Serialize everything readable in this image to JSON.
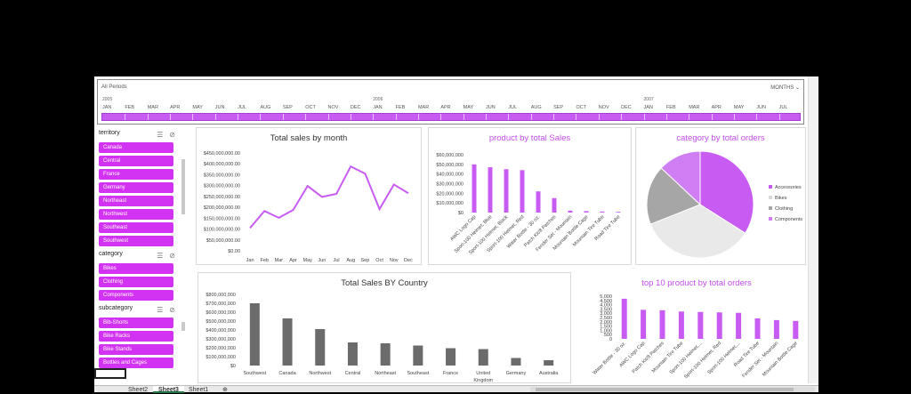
{
  "timeline": {
    "label": "All Periods",
    "unit": "MONTHS",
    "years": [
      "2005",
      "2006",
      "2007"
    ],
    "months": [
      "JAN",
      "FEB",
      "MAR",
      "APR",
      "MAY",
      "JUN",
      "JUL",
      "AUG",
      "SEP",
      "OCT",
      "NOV",
      "DEC",
      "JAN",
      "FEB",
      "MAR",
      "APR",
      "MAY",
      "JUN",
      "JUL",
      "AUG",
      "SEP",
      "OCT",
      "NOV",
      "DEC",
      "JAN",
      "FEB",
      "MAR",
      "APR",
      "MAY",
      "JUN",
      "JUL"
    ]
  },
  "slicers": {
    "territory": {
      "title": "territory",
      "items": [
        "Canada",
        "Central",
        "France",
        "Germany",
        "Northeast",
        "Northwest",
        "Southeast",
        "Southwest"
      ]
    },
    "category": {
      "title": "category",
      "items": [
        "Bikes",
        "Clothing",
        "Components"
      ]
    },
    "subcategory": {
      "title": "subcategory",
      "items": [
        "Bib-Shorts",
        "Bike Racks",
        "Bike Stands",
        "Bottles and Cages"
      ]
    }
  },
  "sheet_tabs": [
    "Sheet2",
    "Sheet3",
    "Sheet1"
  ],
  "active_tab": "Sheet3",
  "colors": {
    "accent": "#c85cf2",
    "slicer": "#d232f2",
    "bar_gray": "#6b6b6b"
  },
  "chart_data": [
    {
      "type": "line",
      "title": "Total sales by month",
      "categories": [
        "Jan",
        "Feb",
        "Mar",
        "Apr",
        "May",
        "Jun",
        "Jul",
        "Aug",
        "Sep",
        "Oct",
        "Nov",
        "Dec"
      ],
      "values": [
        105000000,
        183000000,
        152000000,
        188000000,
        298000000,
        248000000,
        262000000,
        388000000,
        355000000,
        192000000,
        305000000,
        265000000
      ],
      "yticks": [
        "$0.00",
        "$50,000,000.00",
        "$100,000,000.00",
        "$150,000,000.00",
        "$200,000,000.00",
        "$250,000,000.00",
        "$300,000,000.00",
        "$350,000,000.00",
        "$400,000,000.00",
        "$450,000,000.00"
      ],
      "ylim": [
        0,
        450000000
      ],
      "color": "#c85cf2"
    },
    {
      "type": "bar",
      "title": "product by total Sales",
      "categories": [
        "AWC Logo Cap",
        "Sport-100 Helmet, Blue",
        "Sport-100 Helmet, Black",
        "Sport-100 Helmet, Red",
        "Water Bottle - 30 oz.",
        "Patch Kit/8 Patches",
        "Fender Set - Mountain",
        "Mountain Bottle Cage",
        "Mountain Tire Tube",
        "Road Tire Tube"
      ],
      "values": [
        50000000,
        47000000,
        45000000,
        44000000,
        22000000,
        15000000,
        2000000,
        1500000,
        1000000,
        800000
      ],
      "yticks": [
        "$0",
        "$10,000,000",
        "$20,000,000",
        "$30,000,000",
        "$40,000,000",
        "$50,000,000",
        "$60,000,000"
      ],
      "ylim": [
        0,
        60000000
      ],
      "color": "#c85cf2"
    },
    {
      "type": "pie",
      "title": "category by total orders",
      "series": [
        {
          "name": "Accessories",
          "value": 34,
          "color": "#c85cf2"
        },
        {
          "name": "Bikes",
          "value": 35,
          "color": "#e9e9e9"
        },
        {
          "name": "Clothing",
          "value": 18,
          "color": "#a6a6a6"
        },
        {
          "name": "Components",
          "value": 13,
          "color": "#d07ef3"
        }
      ]
    },
    {
      "type": "bar",
      "title": "Total Sales BY Country",
      "categories": [
        "Southwest",
        "Canada",
        "Northwest",
        "Central",
        "Northeast",
        "Southeast",
        "France",
        "United Kingdom",
        "Germany",
        "Australia"
      ],
      "values": [
        700000000,
        530000000,
        410000000,
        260000000,
        250000000,
        225000000,
        195000000,
        185000000,
        85000000,
        60000000
      ],
      "yticks": [
        "$0",
        "$100,000,000",
        "$200,000,000",
        "$300,000,000",
        "$400,000,000",
        "$500,000,000",
        "$600,000,000",
        "$700,000,000",
        "$800,000,000"
      ],
      "ylim": [
        0,
        800000000
      ],
      "color": "#6b6b6b"
    },
    {
      "type": "bar",
      "title": "top 10 product by total orders",
      "categories": [
        "Water Bottle - 30 oz.",
        "AWC Logo Cap",
        "Patch Kit/8 Patches",
        "Mountain Tire Tube",
        "Sport-100 Helmet,...",
        "Sport-100 Helmet, Red",
        "Sport-100 Helmet,...",
        "Road Tire Tube",
        "Fender Set - Mountain",
        "Mountain Bottle Cage"
      ],
      "values": [
        4700,
        3400,
        3350,
        3200,
        3150,
        3100,
        3050,
        2400,
        2200,
        2100
      ],
      "yticks": [
        "0",
        "500",
        "1,000",
        "1,500",
        "2,000",
        "2,500",
        "3,000",
        "3,500",
        "4,000",
        "4,500",
        "5,000"
      ],
      "ylim": [
        0,
        5000
      ],
      "color": "#c85cf2"
    }
  ]
}
